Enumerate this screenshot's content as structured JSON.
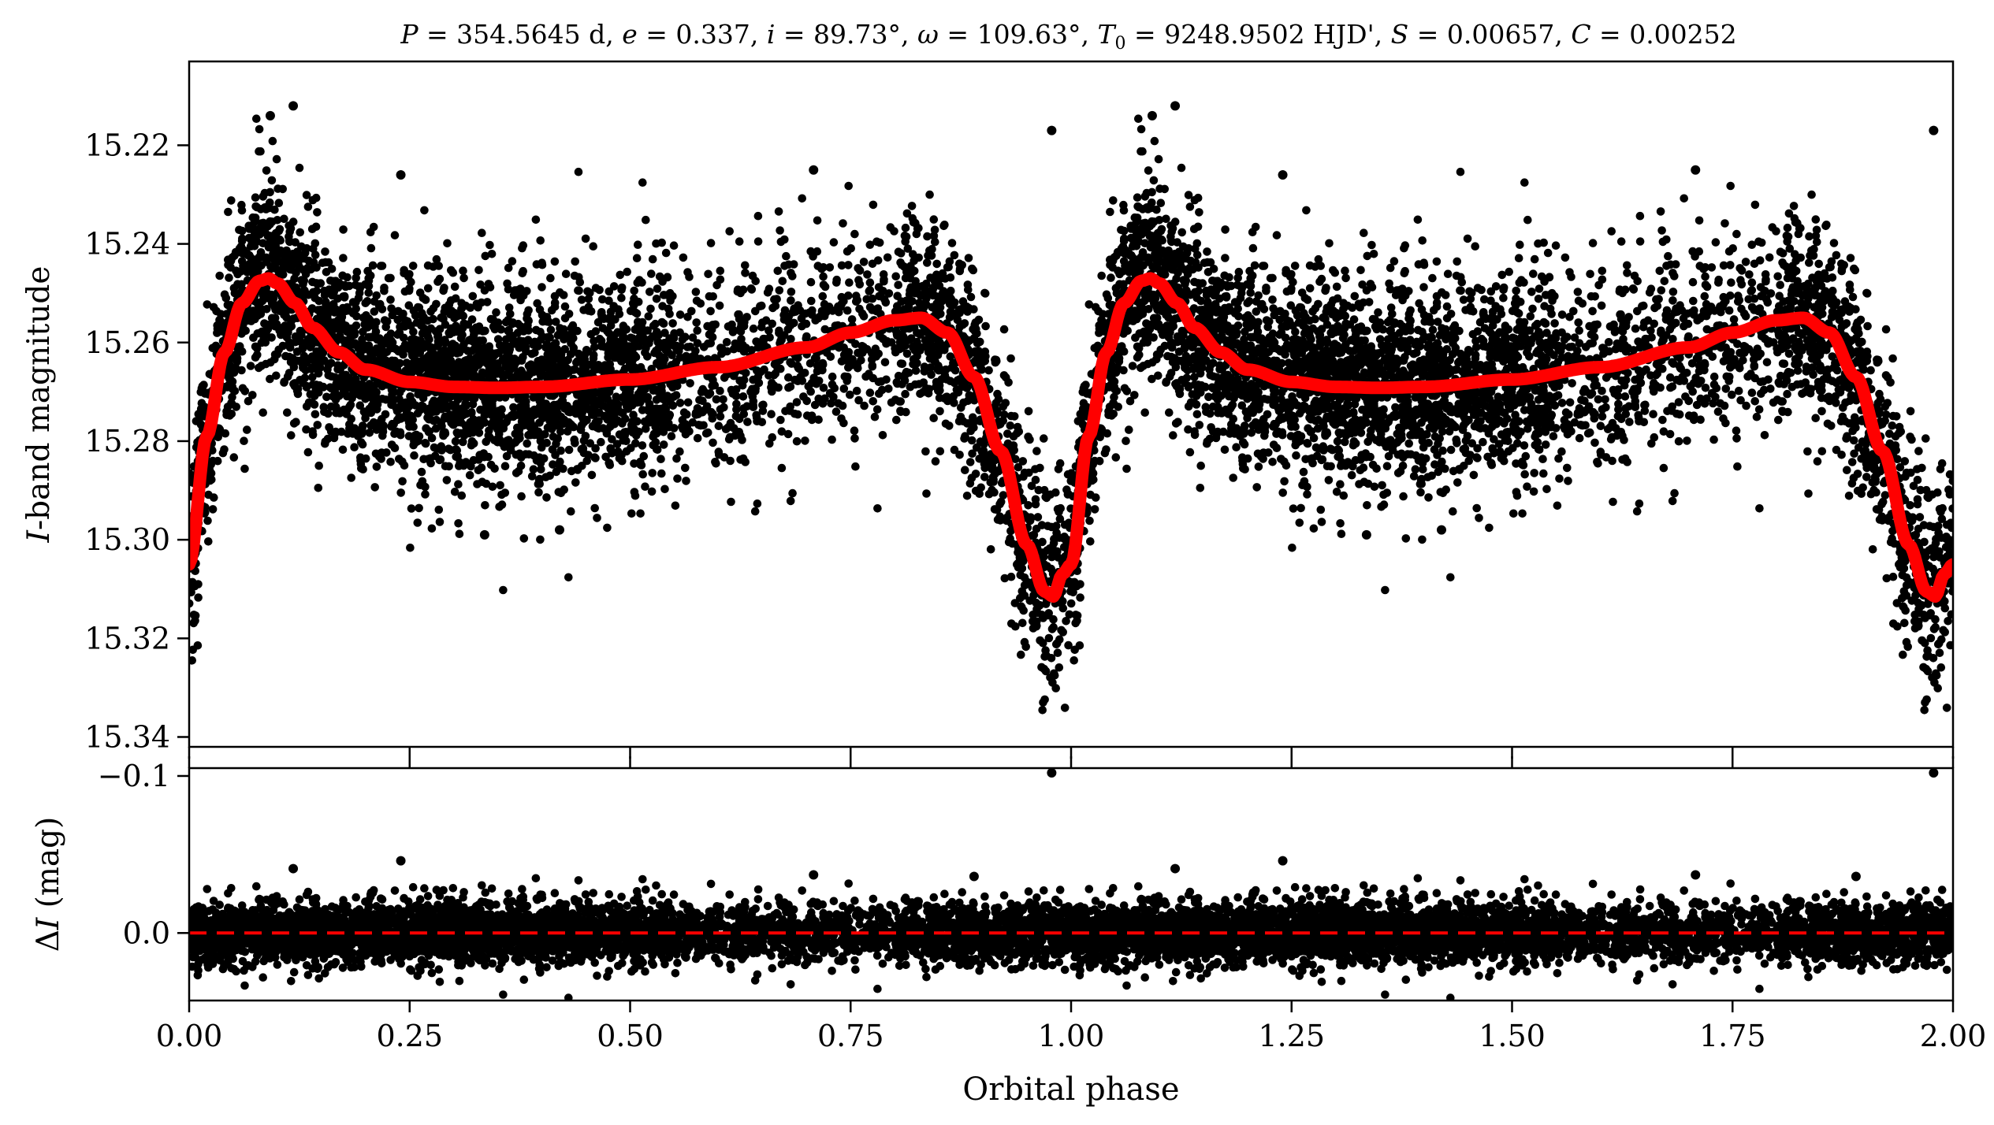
{
  "title": {
    "P_sym": "P",
    "P_val": " = 354.5645 d, ",
    "e_sym": "e",
    "e_val": " = 0.337, ",
    "i_sym": "i",
    "i_val": " = 89.73°, ",
    "w_sym": "ω",
    "w_val": " = 109.63°, ",
    "T_sym": "T",
    "T_sub": "0",
    "T_val": " = 9248.9502 HJD', ",
    "S_sym": "S",
    "S_val": " = 0.00657, ",
    "C_sym": "C",
    "C_val": " = 0.00252"
  },
  "colors": {
    "data": "#000000",
    "model": "#ff0000",
    "axes": "#000000",
    "background": "#ffffff"
  },
  "chart_data": [
    {
      "type": "scatter",
      "panel": "top",
      "ylabel_italic": "I",
      "ylabel_rest": "-band magnitude",
      "xlim": [
        0.0,
        2.0
      ],
      "ylim": [
        15.342,
        15.203
      ],
      "y_inverted": true,
      "yticks": [
        15.22,
        15.24,
        15.26,
        15.28,
        15.3,
        15.32,
        15.34
      ],
      "ytick_labels": [
        "15.22",
        "15.24",
        "15.26",
        "15.28",
        "15.30",
        "15.32",
        "15.34"
      ],
      "model_curve": {
        "phase": [
          0.0,
          0.02,
          0.04,
          0.06,
          0.08,
          0.09,
          0.1,
          0.12,
          0.14,
          0.17,
          0.2,
          0.25,
          0.3,
          0.35,
          0.4,
          0.5,
          0.6,
          0.7,
          0.75,
          0.8,
          0.83,
          0.86,
          0.89,
          0.92,
          0.95,
          0.97,
          0.98,
          0.99,
          1.0
        ],
        "magnitude": [
          15.305,
          15.279,
          15.262,
          15.252,
          15.2475,
          15.247,
          15.248,
          15.252,
          15.257,
          15.262,
          15.2655,
          15.268,
          15.269,
          15.2692,
          15.269,
          15.2675,
          15.265,
          15.261,
          15.258,
          15.2555,
          15.255,
          15.258,
          15.267,
          15.282,
          15.301,
          15.3105,
          15.3115,
          15.307,
          15.305
        ]
      },
      "observations_envelope": {
        "phase": [
          0.0,
          0.05,
          0.09,
          0.15,
          0.25,
          0.4,
          0.55,
          0.7,
          0.83,
          0.9,
          0.95,
          0.98,
          1.0
        ],
        "model_offset_scatter_mag": 0.011,
        "n_points_per_cycle": 4500
      },
      "notable_outliers": [
        {
          "phase": 0.092,
          "magnitude": 15.214
        },
        {
          "phase": 0.118,
          "magnitude": 15.212
        },
        {
          "phase": 0.708,
          "magnitude": 15.225
        },
        {
          "phase": 0.978,
          "magnitude": 15.217
        },
        {
          "phase": 0.24,
          "magnitude": 15.226
        },
        {
          "phase": 0.335,
          "magnitude": 15.299
        },
        {
          "phase": 0.42,
          "magnitude": 15.298
        }
      ]
    },
    {
      "type": "scatter",
      "panel": "bottom",
      "ylabel_delta": "Δ",
      "ylabel_italic": "I",
      "ylabel_rest": " (mag)",
      "xlabel": "Orbital phase",
      "xlim": [
        0.0,
        2.0
      ],
      "ylim": [
        0.043,
        -0.105
      ],
      "y_inverted": true,
      "yticks": [
        -0.1,
        0.0
      ],
      "ytick_labels": [
        "−0.1",
        "0.0"
      ],
      "xticks": [
        0.0,
        0.25,
        0.5,
        0.75,
        1.0,
        1.25,
        1.5,
        1.75,
        2.0
      ],
      "xtick_labels": [
        "0.00",
        "0.25",
        "0.50",
        "0.75",
        "1.00",
        "1.25",
        "1.50",
        "1.75",
        "2.00"
      ],
      "reference_line": {
        "y": 0.0,
        "style": "dashed",
        "color": "#ff0000"
      },
      "residual_scatter_mag": 0.0095,
      "notable_outliers": [
        {
          "phase": 0.978,
          "residual": -0.102
        },
        {
          "phase": 0.24,
          "residual": -0.046
        },
        {
          "phase": 0.118,
          "residual": -0.041
        },
        {
          "phase": 0.708,
          "residual": -0.037
        },
        {
          "phase": 0.89,
          "residual": -0.036
        }
      ]
    }
  ]
}
